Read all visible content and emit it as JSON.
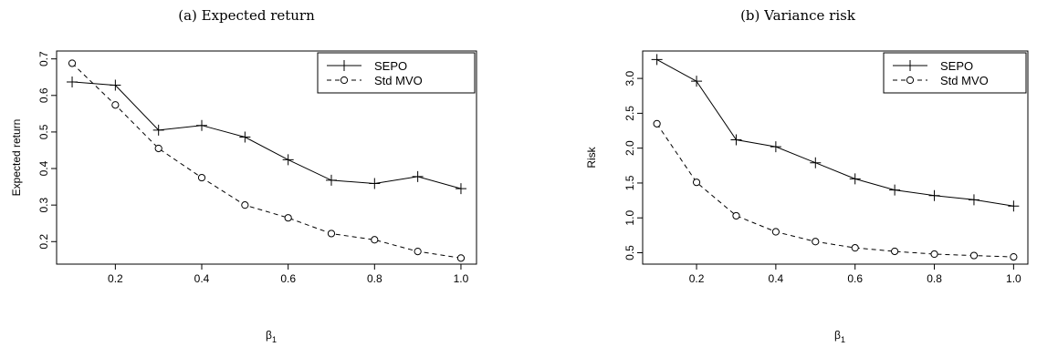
{
  "chart_data": [
    {
      "type": "line",
      "title": "(a) Expected return",
      "xlabel": "β",
      "xlabel_sub": "1",
      "ylabel": "Expected return",
      "xlim": [
        0.1,
        1.0
      ],
      "ylim": [
        0.16,
        0.7
      ],
      "xticks": [
        0.2,
        0.4,
        0.6,
        0.8,
        1.0
      ],
      "xtick_labels": [
        "0.2",
        "0.4",
        "0.6",
        "0.8",
        "1.0"
      ],
      "yticks": [
        0.2,
        0.3,
        0.4,
        0.5,
        0.6,
        0.7
      ],
      "ytick_labels": [
        "0.2",
        "0.3",
        "0.4",
        "0.5",
        "0.6",
        "0.7"
      ],
      "x": [
        0.1,
        0.2,
        0.3,
        0.4,
        0.5,
        0.6,
        0.7,
        0.8,
        0.9,
        1.0
      ],
      "legend_position": "top-right",
      "grid": false,
      "series": [
        {
          "name": "SEPO",
          "style": "solid",
          "marker": "plus",
          "values": [
            0.637,
            0.628,
            0.505,
            0.518,
            0.486,
            0.424,
            0.368,
            0.359,
            0.378,
            0.345
          ]
        },
        {
          "name": "Std MVO",
          "style": "dashed",
          "marker": "circle",
          "values": [
            0.688,
            0.574,
            0.455,
            0.375,
            0.3,
            0.265,
            0.222,
            0.205,
            0.173,
            0.155
          ]
        }
      ]
    },
    {
      "type": "line",
      "title": "(b) Variance risk",
      "xlabel": "β",
      "xlabel_sub": "1",
      "ylabel": "Risk",
      "xlim": [
        0.1,
        1.0
      ],
      "ylim": [
        0.45,
        3.28
      ],
      "xticks": [
        0.2,
        0.4,
        0.6,
        0.8,
        1.0
      ],
      "xtick_labels": [
        "0.2",
        "0.4",
        "0.6",
        "0.8",
        "1.0"
      ],
      "yticks": [
        0.5,
        1.0,
        1.5,
        2.0,
        2.5,
        3.0
      ],
      "ytick_labels": [
        "0.5",
        "1.0",
        "1.5",
        "2.0",
        "2.5",
        "3.0"
      ],
      "x": [
        0.1,
        0.2,
        0.3,
        0.4,
        0.5,
        0.6,
        0.7,
        0.8,
        0.9,
        1.0
      ],
      "legend_position": "top-right",
      "grid": false,
      "series": [
        {
          "name": "SEPO",
          "style": "solid",
          "marker": "plus",
          "values": [
            3.27,
            2.96,
            2.12,
            2.02,
            1.79,
            1.56,
            1.4,
            1.32,
            1.26,
            1.17
          ]
        },
        {
          "name": "Std MVO",
          "style": "dashed",
          "marker": "circle",
          "values": [
            2.35,
            1.51,
            1.03,
            0.8,
            0.66,
            0.57,
            0.52,
            0.48,
            0.46,
            0.44
          ]
        }
      ]
    }
  ]
}
